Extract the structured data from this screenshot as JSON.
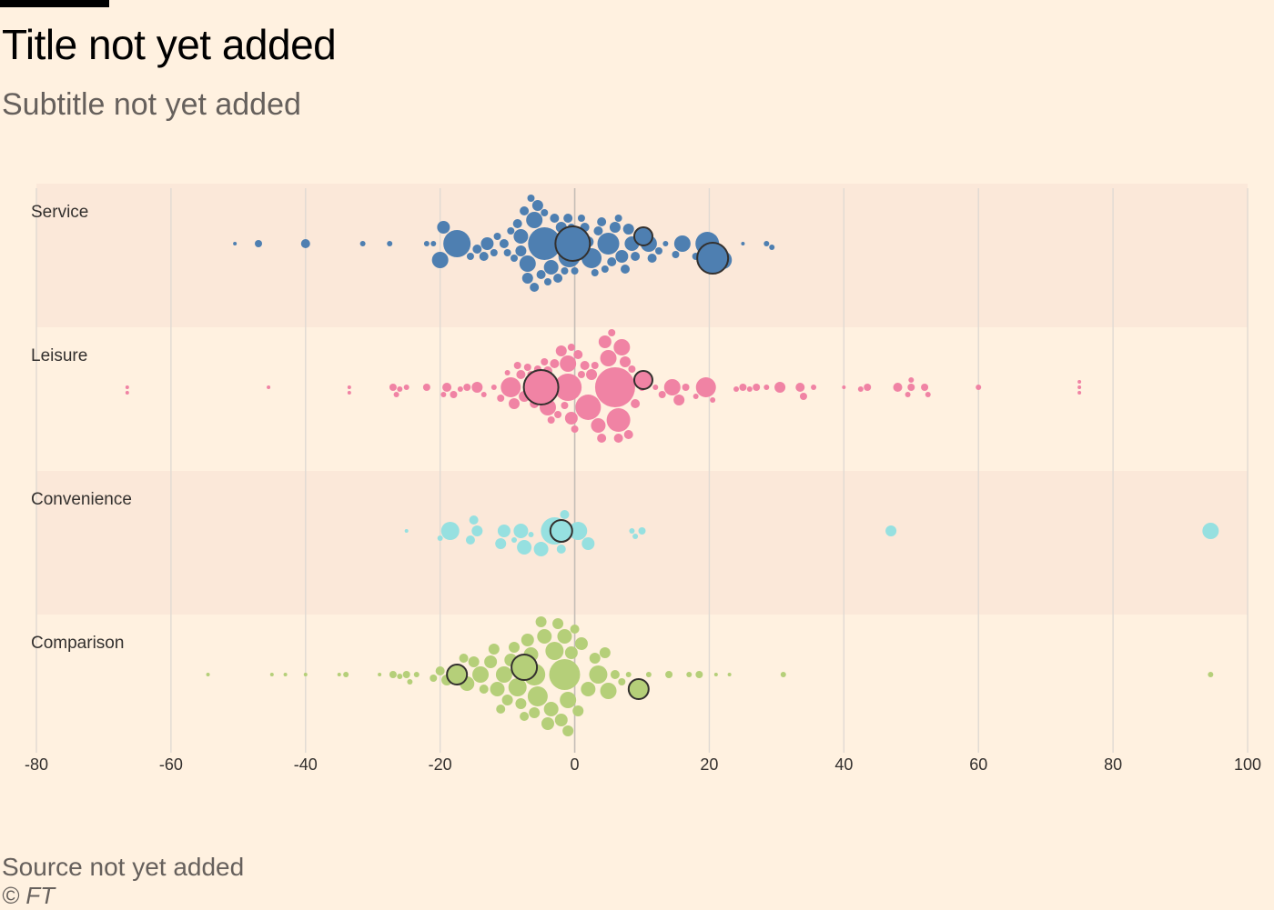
{
  "header": {
    "title": "Title not yet added",
    "subtitle": "Subtitle not yet added"
  },
  "footer": {
    "source": "Source not yet added",
    "copyright": "© FT"
  },
  "colors": {
    "background": "#fff1e0",
    "band": "#fbe8d9",
    "grid": "#e0dad3",
    "zero_line": "#c4bdb6",
    "highlight_stroke": "#33302e"
  },
  "chart_data": {
    "type": "scatter",
    "subtype": "beeswarm",
    "xlim": [
      -80,
      100
    ],
    "xticks": [
      -80,
      -60,
      -40,
      -20,
      0,
      20,
      40,
      60,
      80,
      100
    ],
    "xtick_labels": [
      "-80",
      "-60",
      "-40",
      "-20",
      "0",
      "20",
      "40",
      "60",
      "80",
      "100"
    ],
    "grid": "vertical",
    "bubble_size": "relative",
    "categories": [
      "Service",
      "Leisure",
      "Convenience",
      "Comparison"
    ],
    "series": [
      {
        "name": "Service",
        "color": "#4e7fb1",
        "points": [
          {
            "x": -50.5,
            "s": 2
          },
          {
            "x": -47,
            "s": 4
          },
          {
            "x": -40,
            "s": 5
          },
          {
            "x": -31.5,
            "s": 3
          },
          {
            "x": -27.5,
            "s": 3
          },
          {
            "x": -22,
            "s": 3
          },
          {
            "x": -21,
            "s": 3
          },
          {
            "x": -20,
            "s": 9
          },
          {
            "x": -19.5,
            "s": 7
          },
          {
            "x": -17.5,
            "s": 15
          },
          {
            "x": -15.5,
            "s": 4
          },
          {
            "x": -14.5,
            "s": 5
          },
          {
            "x": -13.5,
            "s": 5
          },
          {
            "x": -13,
            "s": 7
          },
          {
            "x": -12,
            "s": 4
          },
          {
            "x": -11.5,
            "s": 4
          },
          {
            "x": -10.5,
            "s": 5
          },
          {
            "x": -10,
            "s": 4
          },
          {
            "x": -9.5,
            "s": 4
          },
          {
            "x": -9,
            "s": 4
          },
          {
            "x": -8.5,
            "s": 5
          },
          {
            "x": -8,
            "s": 6
          },
          {
            "x": -8,
            "s": 8
          },
          {
            "x": -7.5,
            "s": 5
          },
          {
            "x": -7,
            "s": 9
          },
          {
            "x": -7,
            "s": 6
          },
          {
            "x": -6.5,
            "s": 4
          },
          {
            "x": -6,
            "s": 5
          },
          {
            "x": -6,
            "s": 9
          },
          {
            "x": -5.5,
            "s": 6
          },
          {
            "x": -5,
            "s": 5
          },
          {
            "x": -4.5,
            "s": 18
          },
          {
            "x": -4.5,
            "s": 4
          },
          {
            "x": -4,
            "s": 4
          },
          {
            "x": -3.5,
            "s": 8
          },
          {
            "x": -3,
            "s": 5
          },
          {
            "x": -2.5,
            "s": 5
          },
          {
            "x": -2,
            "s": 6
          },
          {
            "x": -1.5,
            "s": 4
          },
          {
            "x": -1,
            "s": 5
          },
          {
            "x": -1,
            "s": 6
          },
          {
            "x": -0.8,
            "s": 12
          },
          {
            "x": -0.5,
            "s": 4
          },
          {
            "x": 0,
            "s": 4
          },
          {
            "x": 0.5,
            "s": 5
          },
          {
            "x": 1,
            "s": 4
          },
          {
            "x": 1.5,
            "s": 5
          },
          {
            "x": 2,
            "s": 6
          },
          {
            "x": 2.5,
            "s": 11
          },
          {
            "x": 3,
            "s": 4
          },
          {
            "x": 3.5,
            "s": 5
          },
          {
            "x": 4,
            "s": 5
          },
          {
            "x": 4.5,
            "s": 4
          },
          {
            "x": 5,
            "s": 12
          },
          {
            "x": 5.5,
            "s": 5
          },
          {
            "x": 6,
            "s": 6
          },
          {
            "x": 6.5,
            "s": 4
          },
          {
            "x": 7,
            "s": 7
          },
          {
            "x": 7.5,
            "s": 5
          },
          {
            "x": 8,
            "s": 6
          },
          {
            "x": 8.5,
            "s": 8
          },
          {
            "x": 9,
            "s": 5
          },
          {
            "x": 9.5,
            "s": 4
          },
          {
            "x": 11,
            "s": 9
          },
          {
            "x": 11.5,
            "s": 5
          },
          {
            "x": 12.5,
            "s": 4
          },
          {
            "x": 13.5,
            "s": 3
          },
          {
            "x": 15,
            "s": 4
          },
          {
            "x": 16,
            "s": 9
          },
          {
            "x": 18,
            "s": 4
          },
          {
            "x": 19.5,
            "s": 6
          },
          {
            "x": 19.7,
            "s": 13
          },
          {
            "x": 22,
            "s": 10
          },
          {
            "x": 25,
            "s": 2
          },
          {
            "x": 28.5,
            "s": 3
          },
          {
            "x": 29.3,
            "s": 3
          },
          {
            "x": -0.3,
            "s": 19,
            "highlight": true
          },
          {
            "x": 10.2,
            "s": 10,
            "highlight": true
          },
          {
            "x": 20.5,
            "s": 17,
            "highlight": true
          }
        ]
      },
      {
        "name": "Leisure",
        "color": "#f083a4",
        "points": [
          {
            "x": -66.5,
            "s": 2
          },
          {
            "x": -66.5,
            "s": 2
          },
          {
            "x": -45.5,
            "s": 2
          },
          {
            "x": -33.5,
            "s": 2
          },
          {
            "x": -33.5,
            "s": 2
          },
          {
            "x": -27,
            "s": 4
          },
          {
            "x": -26.5,
            "s": 3
          },
          {
            "x": -26,
            "s": 3
          },
          {
            "x": -25,
            "s": 3
          },
          {
            "x": -22,
            "s": 4
          },
          {
            "x": -19.5,
            "s": 3
          },
          {
            "x": -19,
            "s": 5
          },
          {
            "x": -18,
            "s": 4
          },
          {
            "x": -17,
            "s": 3
          },
          {
            "x": -16,
            "s": 4
          },
          {
            "x": -14.5,
            "s": 6
          },
          {
            "x": -13.5,
            "s": 3
          },
          {
            "x": -12,
            "s": 3
          },
          {
            "x": -11,
            "s": 4
          },
          {
            "x": -10,
            "s": 3
          },
          {
            "x": -9.5,
            "s": 11
          },
          {
            "x": -9,
            "s": 6
          },
          {
            "x": -8.5,
            "s": 4
          },
          {
            "x": -8,
            "s": 5
          },
          {
            "x": -7.5,
            "s": 6
          },
          {
            "x": -7,
            "s": 4
          },
          {
            "x": -6.5,
            "s": 4
          },
          {
            "x": -6,
            "s": 5
          },
          {
            "x": -5.5,
            "s": 4
          },
          {
            "x": -5,
            "s": 13
          },
          {
            "x": -4.5,
            "s": 4
          },
          {
            "x": -4,
            "s": 5
          },
          {
            "x": -4,
            "s": 9
          },
          {
            "x": -3.5,
            "s": 4
          },
          {
            "x": -3,
            "s": 5
          },
          {
            "x": -2.5,
            "s": 4
          },
          {
            "x": -2,
            "s": 6
          },
          {
            "x": -1.5,
            "s": 4
          },
          {
            "x": -1,
            "s": 9
          },
          {
            "x": -1,
            "s": 15
          },
          {
            "x": -0.5,
            "s": 4
          },
          {
            "x": -0.5,
            "s": 7
          },
          {
            "x": 0,
            "s": 4
          },
          {
            "x": 0.5,
            "s": 5
          },
          {
            "x": 1,
            "s": 4
          },
          {
            "x": 1.5,
            "s": 5
          },
          {
            "x": 2,
            "s": 14
          },
          {
            "x": 2.5,
            "s": 6
          },
          {
            "x": 3,
            "s": 4
          },
          {
            "x": 3.5,
            "s": 8
          },
          {
            "x": 4,
            "s": 5
          },
          {
            "x": 4.5,
            "s": 7
          },
          {
            "x": 5,
            "s": 9
          },
          {
            "x": 5.5,
            "s": 4
          },
          {
            "x": 6,
            "s": 22
          },
          {
            "x": 6.5,
            "s": 5
          },
          {
            "x": 6.5,
            "s": 13
          },
          {
            "x": 7,
            "s": 9
          },
          {
            "x": 7.5,
            "s": 6
          },
          {
            "x": 8,
            "s": 5
          },
          {
            "x": 8.5,
            "s": 4
          },
          {
            "x": 9,
            "s": 5
          },
          {
            "x": 10,
            "s": 4
          },
          {
            "x": 12,
            "s": 3
          },
          {
            "x": 13,
            "s": 4
          },
          {
            "x": 14.5,
            "s": 9
          },
          {
            "x": 15.5,
            "s": 6
          },
          {
            "x": 16.5,
            "s": 4
          },
          {
            "x": 18,
            "s": 3
          },
          {
            "x": 19.5,
            "s": 11
          },
          {
            "x": 20.5,
            "s": 3
          },
          {
            "x": 24,
            "s": 3
          },
          {
            "x": 25,
            "s": 4
          },
          {
            "x": 26,
            "s": 3
          },
          {
            "x": 27,
            "s": 4
          },
          {
            "x": 28.5,
            "s": 3
          },
          {
            "x": 30.5,
            "s": 6
          },
          {
            "x": 33.5,
            "s": 5
          },
          {
            "x": 34,
            "s": 4
          },
          {
            "x": 35.5,
            "s": 3
          },
          {
            "x": 40,
            "s": 2
          },
          {
            "x": 42.5,
            "s": 3
          },
          {
            "x": 43.5,
            "s": 4
          },
          {
            "x": 48,
            "s": 5
          },
          {
            "x": 49.5,
            "s": 3
          },
          {
            "x": 50,
            "s": 4
          },
          {
            "x": 50,
            "s": 3
          },
          {
            "x": 52,
            "s": 4
          },
          {
            "x": 52.5,
            "s": 3
          },
          {
            "x": 60,
            "s": 3
          },
          {
            "x": 75,
            "s": 2
          },
          {
            "x": 75,
            "s": 2
          },
          {
            "x": 75,
            "s": 2
          },
          {
            "x": -5,
            "s": 19,
            "highlight": true
          },
          {
            "x": 10.2,
            "s": 10,
            "highlight": true
          }
        ]
      },
      {
        "name": "Convenience",
        "color": "#96e0e0",
        "points": [
          {
            "x": -25,
            "s": 2
          },
          {
            "x": -20,
            "s": 3
          },
          {
            "x": -18.5,
            "s": 10
          },
          {
            "x": -15.5,
            "s": 5
          },
          {
            "x": -15,
            "s": 5
          },
          {
            "x": -14.5,
            "s": 6
          },
          {
            "x": -11,
            "s": 6
          },
          {
            "x": -10.5,
            "s": 7
          },
          {
            "x": -9,
            "s": 3
          },
          {
            "x": -8,
            "s": 8
          },
          {
            "x": -7.5,
            "s": 8
          },
          {
            "x": -6.5,
            "s": 3
          },
          {
            "x": -5,
            "s": 8
          },
          {
            "x": -3,
            "s": 15
          },
          {
            "x": -2,
            "s": 5
          },
          {
            "x": -1.5,
            "s": 5
          },
          {
            "x": 0.5,
            "s": 10
          },
          {
            "x": 2,
            "s": 7
          },
          {
            "x": 8.5,
            "s": 3
          },
          {
            "x": 9,
            "s": 3
          },
          {
            "x": 10,
            "s": 4
          },
          {
            "x": 47,
            "s": 6
          },
          {
            "x": 94.5,
            "s": 9
          },
          {
            "x": -2,
            "s": 12,
            "highlight": true
          }
        ]
      },
      {
        "name": "Comparison",
        "color": "#b5cf79",
        "points": [
          {
            "x": -54.5,
            "s": 2
          },
          {
            "x": -45,
            "s": 2
          },
          {
            "x": -43,
            "s": 2
          },
          {
            "x": -40,
            "s": 2
          },
          {
            "x": -35,
            "s": 2
          },
          {
            "x": -34,
            "s": 3
          },
          {
            "x": -29,
            "s": 2
          },
          {
            "x": -27,
            "s": 4
          },
          {
            "x": -26,
            "s": 3
          },
          {
            "x": -25,
            "s": 4
          },
          {
            "x": -24.5,
            "s": 3
          },
          {
            "x": -23.5,
            "s": 3
          },
          {
            "x": -21,
            "s": 4
          },
          {
            "x": -20,
            "s": 5
          },
          {
            "x": -19,
            "s": 6
          },
          {
            "x": -17.5,
            "s": 7
          },
          {
            "x": -16.5,
            "s": 5
          },
          {
            "x": -16,
            "s": 8
          },
          {
            "x": -15,
            "s": 6
          },
          {
            "x": -14,
            "s": 9
          },
          {
            "x": -13.5,
            "s": 5
          },
          {
            "x": -12.5,
            "s": 7
          },
          {
            "x": -12,
            "s": 6
          },
          {
            "x": -11.5,
            "s": 8
          },
          {
            "x": -11,
            "s": 5
          },
          {
            "x": -10.5,
            "s": 9
          },
          {
            "x": -10,
            "s": 6
          },
          {
            "x": -9.5,
            "s": 7
          },
          {
            "x": -9,
            "s": 6
          },
          {
            "x": -8.5,
            "s": 10
          },
          {
            "x": -8,
            "s": 6
          },
          {
            "x": -7.5,
            "s": 5
          },
          {
            "x": -7,
            "s": 7
          },
          {
            "x": -6.5,
            "s": 8
          },
          {
            "x": -6,
            "s": 6
          },
          {
            "x": -6,
            "s": 12
          },
          {
            "x": -5.5,
            "s": 11
          },
          {
            "x": -5,
            "s": 6
          },
          {
            "x": -4.5,
            "s": 8
          },
          {
            "x": -4,
            "s": 7
          },
          {
            "x": -3.5,
            "s": 8
          },
          {
            "x": -3,
            "s": 10
          },
          {
            "x": -2.5,
            "s": 6
          },
          {
            "x": -2,
            "s": 7
          },
          {
            "x": -1.5,
            "s": 17
          },
          {
            "x": -1.5,
            "s": 8
          },
          {
            "x": -1,
            "s": 9
          },
          {
            "x": -1,
            "s": 6
          },
          {
            "x": -0.5,
            "s": 7
          },
          {
            "x": 0,
            "s": 5
          },
          {
            "x": 0.5,
            "s": 6
          },
          {
            "x": 1,
            "s": 7
          },
          {
            "x": 2,
            "s": 8
          },
          {
            "x": 3,
            "s": 6
          },
          {
            "x": 3.5,
            "s": 10
          },
          {
            "x": 4.5,
            "s": 6
          },
          {
            "x": 5,
            "s": 9
          },
          {
            "x": 6,
            "s": 5
          },
          {
            "x": 7,
            "s": 4
          },
          {
            "x": 8,
            "s": 3
          },
          {
            "x": 11,
            "s": 3
          },
          {
            "x": 14,
            "s": 4
          },
          {
            "x": 17,
            "s": 3
          },
          {
            "x": 18.5,
            "s": 4
          },
          {
            "x": 21,
            "s": 2
          },
          {
            "x": 23,
            "s": 2
          },
          {
            "x": 31,
            "s": 3
          },
          {
            "x": 94.5,
            "s": 3
          },
          {
            "x": -17.5,
            "s": 11,
            "highlight": true
          },
          {
            "x": -7.5,
            "s": 14,
            "highlight": true
          },
          {
            "x": 9.5,
            "s": 11,
            "highlight": true
          }
        ]
      }
    ]
  }
}
